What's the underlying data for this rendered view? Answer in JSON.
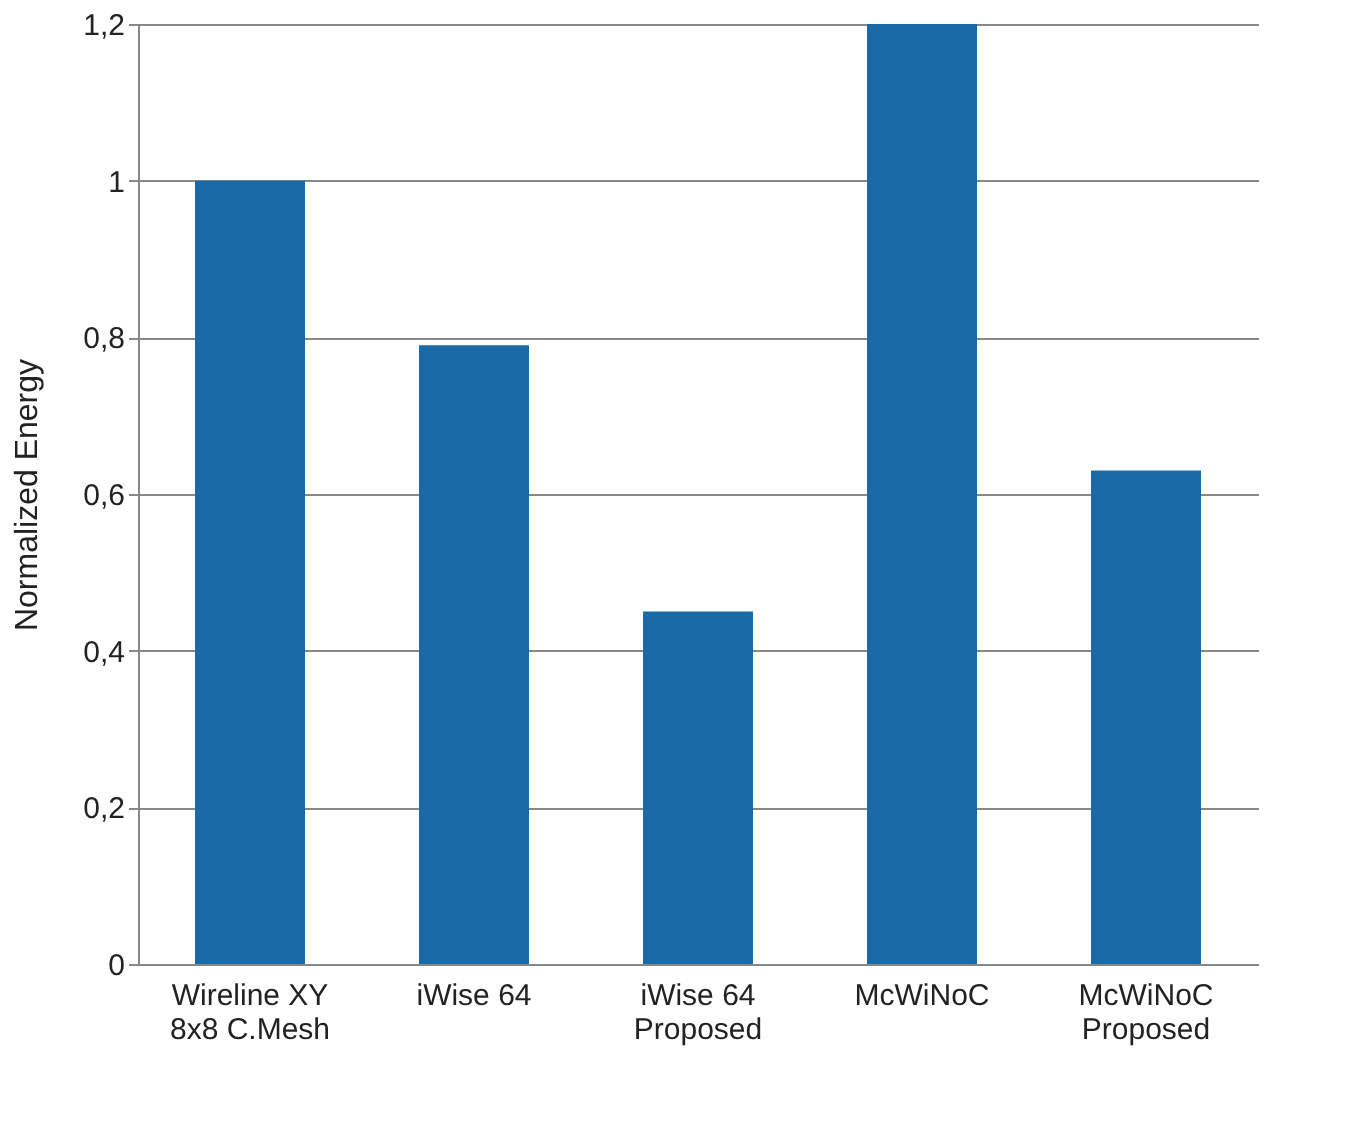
{
  "chart_data": {
    "type": "bar",
    "ylabel": "Normalized Energy",
    "categories": [
      "Wireline XY\n8x8 C.Mesh",
      "iWise 64",
      "iWise 64\nProposed",
      "McWiNoC",
      "McWiNoC\nProposed"
    ],
    "values": [
      1,
      0.79,
      0.45,
      1.2,
      0.63
    ],
    "color": "#1a6aa8",
    "ylim": [
      0,
      1.2
    ],
    "yticks": [
      0,
      {
        "value": 0.2,
        "label": "0,2"
      },
      {
        "value": 0.4,
        "label": "0,4"
      },
      {
        "value": 0.6,
        "label": "0,6"
      },
      {
        "value": 0.8,
        "label": "0,8"
      },
      1,
      {
        "value": 1.2,
        "label": "1,2"
      }
    ],
    "grid": "y"
  }
}
